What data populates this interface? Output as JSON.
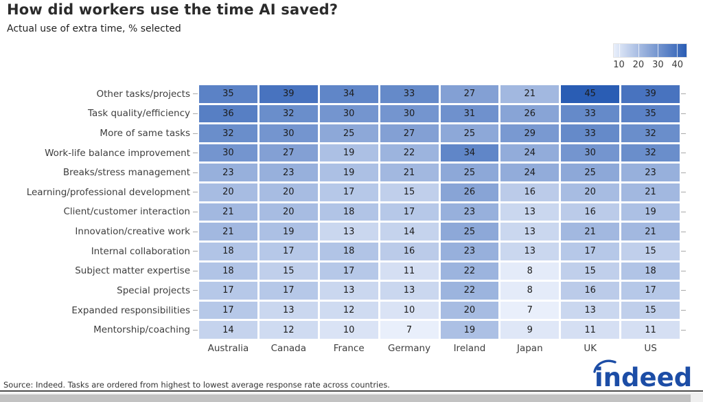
{
  "header": {
    "title": "How did workers use the time AI saved?",
    "subtitle": "Actual use of extra time, % selected"
  },
  "chart_data": {
    "type": "heatmap",
    "title": "How did workers use the time AI saved?",
    "subtitle": "Actual use of extra time, % selected",
    "columns": [
      "Australia",
      "Canada",
      "France",
      "Germany",
      "Ireland",
      "Japan",
      "UK",
      "US"
    ],
    "row_labels": [
      "Other tasks/projects",
      "Task quality/efficiency",
      "More of same tasks",
      "Work-life balance improvement",
      "Breaks/stress management",
      "Learning/professional development",
      "Client/customer interaction",
      "Innovation/creative work",
      "Internal collaboration",
      "Subject matter expertise",
      "Special projects",
      "Expanded responsibilities",
      "Mentorship/coaching"
    ],
    "values": [
      [
        35,
        39,
        34,
        33,
        27,
        21,
        45,
        39
      ],
      [
        36,
        32,
        30,
        30,
        31,
        26,
        33,
        35
      ],
      [
        32,
        30,
        25,
        27,
        25,
        29,
        33,
        32
      ],
      [
        30,
        27,
        19,
        22,
        34,
        24,
        30,
        32
      ],
      [
        23,
        23,
        19,
        21,
        25,
        24,
        25,
        23
      ],
      [
        20,
        20,
        17,
        15,
        26,
        16,
        20,
        21
      ],
      [
        21,
        20,
        18,
        17,
        23,
        13,
        16,
        19
      ],
      [
        21,
        19,
        13,
        14,
        25,
        13,
        21,
        21
      ],
      [
        18,
        17,
        18,
        16,
        23,
        13,
        17,
        15
      ],
      [
        18,
        15,
        17,
        11,
        22,
        8,
        15,
        18
      ],
      [
        17,
        17,
        13,
        13,
        22,
        8,
        16,
        17
      ],
      [
        17,
        13,
        12,
        10,
        20,
        7,
        13,
        15
      ],
      [
        14,
        12,
        10,
        7,
        19,
        9,
        11,
        11
      ]
    ],
    "colorbar": {
      "ticks": [
        10,
        20,
        30,
        40
      ],
      "domain": [
        7,
        45
      ],
      "stops": [
        {
          "value": 7,
          "color": "#e9effb"
        },
        {
          "value": 26,
          "color": "#88a4d6"
        },
        {
          "value": 45,
          "color": "#2a5db4"
        }
      ]
    },
    "legend_position": "top-right",
    "grid": false
  },
  "footer": {
    "source": "Source: Indeed. Tasks are ordered from highest to lowest average response rate across countries.",
    "logo_text": "indeed",
    "logo_color": "#1c4da6"
  },
  "colors": {
    "cell_text": "#1c1c1c",
    "axis_label": "#3d3d3d",
    "title_text": "#2b2b2b"
  }
}
